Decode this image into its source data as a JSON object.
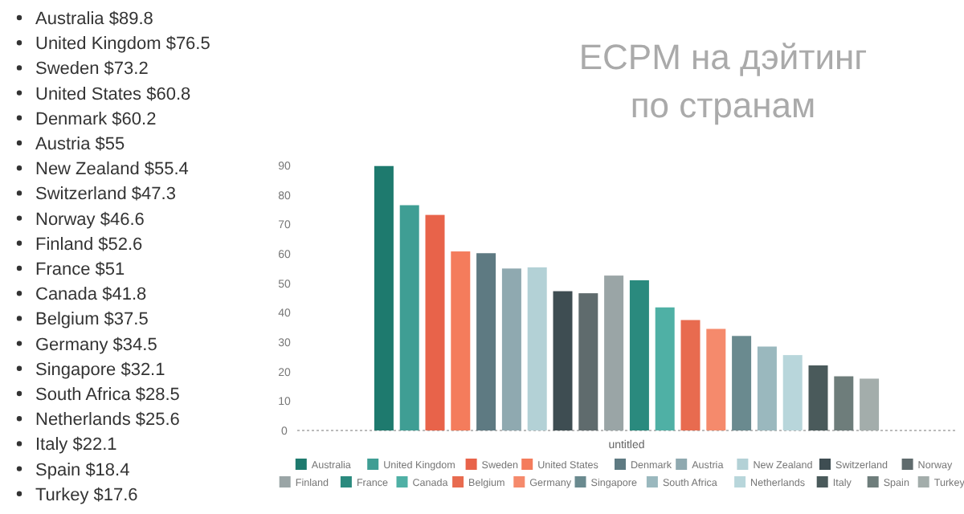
{
  "chart_data": {
    "type": "bar",
    "title": "ECPM на дэйтинг\nпо странам",
    "categories": [
      "untitled"
    ],
    "ylim": [
      0,
      90
    ],
    "yticks": [
      0,
      10,
      20,
      30,
      40,
      50,
      60,
      70,
      80,
      90
    ],
    "grid": false,
    "legend": "bottom",
    "annotations": [
      "Australia $89.8",
      "United Kingdom $76.5",
      "Sweden $73.2",
      "United States $60.8",
      "Denmark $60.2",
      "Austria $55",
      "New Zealand $55.4",
      "Switzerland $47.3",
      "Norway $46.6",
      "Finland $52.6",
      "France $51",
      "Canada $41.8",
      "Belgium $37.5",
      "Germany $34.5",
      "Singapore $32.1",
      "South Africa $28.5",
      "Netherlands $25.6",
      "Italy $22.1",
      "Spain $18.4",
      "Turkey $17.6"
    ],
    "series": [
      {
        "name": "Australia",
        "color": "#1e7a6e",
        "values": [
          89.8
        ]
      },
      {
        "name": "United Kingdom",
        "color": "#3f9e94",
        "values": [
          76.5
        ]
      },
      {
        "name": "Sweden",
        "color": "#e8634a",
        "values": [
          73.2
        ]
      },
      {
        "name": "United States",
        "color": "#f47c5c",
        "values": [
          60.8
        ]
      },
      {
        "name": "Denmark",
        "color": "#5e7a82",
        "values": [
          60.2
        ]
      },
      {
        "name": "Austria",
        "color": "#8fa9b0",
        "values": [
          55
        ]
      },
      {
        "name": "New Zealand",
        "color": "#b3d1d6",
        "values": [
          55.4
        ]
      },
      {
        "name": "Switzerland",
        "color": "#3e4d52",
        "values": [
          47.3
        ]
      },
      {
        "name": "Norway",
        "color": "#5f6b6d",
        "values": [
          46.6
        ]
      },
      {
        "name": "Finland",
        "color": "#9aa5a6",
        "values": [
          52.6
        ]
      },
      {
        "name": "France",
        "color": "#2a8a7e",
        "values": [
          51
        ]
      },
      {
        "name": "Canada",
        "color": "#4fb0a5",
        "values": [
          41.8
        ]
      },
      {
        "name": "Belgium",
        "color": "#e86b4f",
        "values": [
          37.5
        ]
      },
      {
        "name": "Germany",
        "color": "#f58a6c",
        "values": [
          34.5
        ]
      },
      {
        "name": "Singapore",
        "color": "#6a8a8f",
        "values": [
          32.1
        ]
      },
      {
        "name": "South Africa",
        "color": "#9ab8be",
        "values": [
          28.5
        ]
      },
      {
        "name": "Netherlands",
        "color": "#b8d6db",
        "values": [
          25.6
        ]
      },
      {
        "name": "Italy",
        "color": "#4a5a5b",
        "values": [
          22.1
        ]
      },
      {
        "name": "Spain",
        "color": "#6e7d7b",
        "values": [
          18.4
        ]
      },
      {
        "name": "Turkey",
        "color": "#a3adab",
        "values": [
          17.6
        ]
      }
    ]
  }
}
